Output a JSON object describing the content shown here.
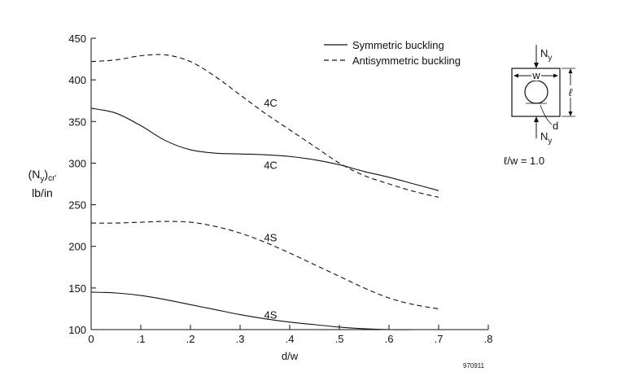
{
  "chart_data": {
    "type": "line",
    "xlabel": "d/w",
    "ylabel_main": "(N",
    "ylabel_sub1": "y",
    "ylabel_close": ")",
    "ylabel_sub2": "cr'",
    "ylabel_line2": "lb/in",
    "xlim": [
      0,
      0.8
    ],
    "ylim": [
      100,
      450
    ],
    "x_ticks": [
      "0",
      ".1",
      ".2",
      ".3",
      ".4",
      ".5",
      ".6",
      ".7",
      ".8"
    ],
    "y_ticks": [
      "100",
      "150",
      "200",
      "250",
      "300",
      "350",
      "400",
      "450"
    ],
    "x_tick_values": [
      0,
      0.1,
      0.2,
      0.3,
      0.4,
      0.5,
      0.6,
      0.7,
      0.8
    ],
    "y_tick_values": [
      100,
      150,
      200,
      250,
      300,
      350,
      400,
      450
    ],
    "legend": {
      "position": "top-right",
      "symmetric": "Symmetric buckling",
      "antisymmetric": "Antisymmetric buckling"
    },
    "series": [
      {
        "name": "Antisymmetric buckling",
        "style": "dashed",
        "label": "4C",
        "x": [
          0,
          0.05,
          0.1,
          0.15,
          0.2,
          0.25,
          0.3,
          0.35,
          0.4,
          0.45,
          0.5,
          0.55,
          0.6,
          0.65,
          0.7
        ],
        "y": [
          422,
          424,
          429,
          430,
          422,
          404,
          382,
          360,
          340,
          320,
          300,
          285,
          275,
          266,
          259
        ]
      },
      {
        "name": "Symmetric buckling",
        "style": "solid",
        "label": "4C",
        "x": [
          0,
          0.05,
          0.1,
          0.15,
          0.2,
          0.25,
          0.3,
          0.35,
          0.4,
          0.45,
          0.5,
          0.55,
          0.6,
          0.65,
          0.7
        ],
        "y": [
          366,
          360,
          345,
          327,
          316,
          312,
          311,
          310,
          308,
          304,
          298,
          290,
          283,
          275,
          267
        ]
      },
      {
        "name": "Antisymmetric buckling",
        "style": "dashed",
        "label": "4S",
        "x": [
          0,
          0.05,
          0.1,
          0.15,
          0.2,
          0.25,
          0.3,
          0.35,
          0.4,
          0.45,
          0.5,
          0.55,
          0.6,
          0.65,
          0.7
        ],
        "y": [
          228,
          228,
          229,
          230,
          229,
          224,
          216,
          205,
          192,
          178,
          164,
          150,
          138,
          130,
          125
        ]
      },
      {
        "name": "Symmetric buckling",
        "style": "solid",
        "label": "4S",
        "x": [
          0,
          0.05,
          0.1,
          0.15,
          0.2,
          0.25,
          0.3,
          0.35,
          0.4,
          0.45,
          0.5,
          0.55,
          0.6,
          0.65,
          0.7
        ],
        "y": [
          145,
          144,
          141,
          136,
          130,
          124,
          118,
          113,
          109,
          106,
          103,
          101,
          100,
          100,
          100
        ]
      }
    ],
    "series_labels": [
      {
        "text": "4C",
        "x": 0.35,
        "y": 373
      },
      {
        "text": "4C",
        "x": 0.35,
        "y": 298
      },
      {
        "text": "4S",
        "x": 0.35,
        "y": 211
      },
      {
        "text": "4S",
        "x": 0.35,
        "y": 118
      }
    ],
    "inset": {
      "ny_top": "N",
      "ny_top_sub": "y",
      "ny_bottom": "N",
      "ny_bottom_sub": "y",
      "w": "w",
      "l": "ℓ",
      "d": "d",
      "ratio": "ℓ/w = 1.0"
    },
    "figure_id": "970911"
  }
}
